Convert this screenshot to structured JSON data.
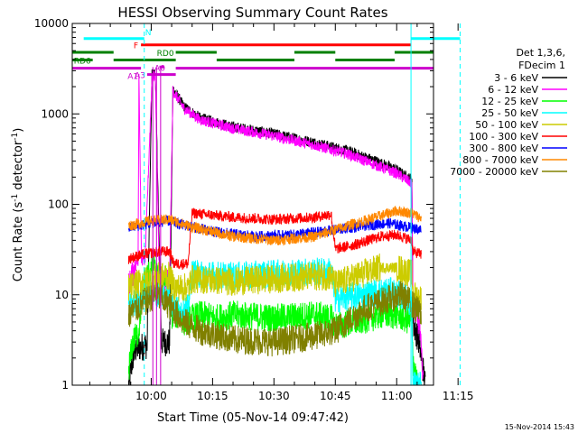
{
  "chart_data": {
    "type": "line",
    "title": "HESSI Observing Summary Count Rates",
    "xlabel": "Start Time (05-Nov-14 09:47:42)",
    "ylabel_main": "Count Rate (s",
    "ylabel_sup1": "-1",
    "ylabel_mid": " detector",
    "ylabel_sup2": "-1",
    "ylabel_end": ")",
    "y_scale": "log",
    "ylim": [
      1,
      10000
    ],
    "xlim_min": [
      -9.3,
      79
    ],
    "x_unit": "minutes after 09:50",
    "x_ticks": [
      {
        "label": "10:00",
        "value": 10
      },
      {
        "label": "10:15",
        "value": 25
      },
      {
        "label": "10:30",
        "value": 40
      },
      {
        "label": "10:45",
        "value": 55
      },
      {
        "label": "11:00",
        "value": 70
      },
      {
        "label": "11:15",
        "value": 85
      }
    ],
    "y_ticks": [
      {
        "label": "1",
        "value": 1
      },
      {
        "label": "10",
        "value": 10
      },
      {
        "label": "100",
        "value": 100
      },
      {
        "label": "1000",
        "value": 1000
      },
      {
        "label": "10000",
        "value": 10000
      }
    ],
    "legend_header": [
      "Det 1,3,6,",
      "FDecim 1"
    ],
    "series": [
      {
        "name": "3 - 6 keV",
        "color": "#000000",
        "points": [
          [
            4.5,
            1
          ],
          [
            5.5,
            2
          ],
          [
            6.2,
            2.5
          ],
          [
            9,
            2.8
          ],
          [
            10.2,
            2800
          ],
          [
            11,
            2800
          ],
          [
            12.5,
            3
          ],
          [
            14.5,
            3
          ],
          [
            15.3,
            1900
          ],
          [
            18,
            1200
          ],
          [
            22,
            900
          ],
          [
            30,
            720
          ],
          [
            40,
            600
          ],
          [
            50,
            480
          ],
          [
            58,
            390
          ],
          [
            65,
            300
          ],
          [
            70,
            240
          ],
          [
            72.5,
            200
          ],
          [
            73.7,
            190
          ],
          [
            74,
            5
          ],
          [
            75.5,
            3
          ],
          [
            77,
            1
          ]
        ]
      },
      {
        "name": "6 - 12 keV",
        "color": "#ff00ff",
        "points": [
          [
            4.5,
            14
          ],
          [
            6.8,
            24
          ],
          [
            7,
            3000
          ],
          [
            7.6,
            24
          ],
          [
            8.5,
            24
          ],
          [
            10.2,
            2600
          ],
          [
            11,
            2600
          ],
          [
            12,
            14
          ],
          [
            14.5,
            14
          ],
          [
            15.3,
            1800
          ],
          [
            18,
            1150
          ],
          [
            22,
            860
          ],
          [
            30,
            690
          ],
          [
            40,
            570
          ],
          [
            50,
            450
          ],
          [
            58,
            360
          ],
          [
            65,
            270
          ],
          [
            70,
            220
          ],
          [
            73.7,
            170
          ],
          [
            74,
            8
          ],
          [
            75.5,
            5
          ],
          [
            76.5,
            1
          ]
        ]
      },
      {
        "name": "12 - 25 keV",
        "color": "#00ff00",
        "points": [
          [
            4.5,
            1.5
          ],
          [
            5.5,
            3
          ],
          [
            7,
            4
          ],
          [
            8,
            14
          ],
          [
            10.5,
            20
          ],
          [
            12,
            14
          ],
          [
            13.5,
            15
          ],
          [
            15,
            6
          ],
          [
            17,
            6
          ],
          [
            18,
            5
          ],
          [
            22,
            6
          ],
          [
            26,
            5.5
          ],
          [
            30,
            6
          ],
          [
            40,
            5.5
          ],
          [
            50,
            6
          ],
          [
            54,
            5.5
          ],
          [
            55,
            4.5
          ],
          [
            60,
            5
          ],
          [
            66,
            6
          ],
          [
            70,
            6
          ],
          [
            73.7,
            5
          ],
          [
            74,
            2
          ],
          [
            75,
            1
          ]
        ]
      },
      {
        "name": "25 - 50 keV",
        "color": "#00ffff",
        "points": [
          [
            4.5,
            7
          ],
          [
            8,
            10
          ],
          [
            12,
            10
          ],
          [
            14.5,
            10
          ],
          [
            15.5,
            7
          ],
          [
            19,
            7
          ],
          [
            20,
            17
          ],
          [
            30,
            16
          ],
          [
            40,
            17
          ],
          [
            50,
            18
          ],
          [
            54,
            18
          ],
          [
            55,
            9
          ],
          [
            62,
            10
          ],
          [
            68,
            11
          ],
          [
            71,
            10
          ],
          [
            73.7,
            8
          ],
          [
            74,
            1
          ],
          [
            76,
            1
          ]
        ]
      },
      {
        "name": "50 - 100 keV",
        "color": "#cccc00",
        "points": [
          [
            4.5,
            12
          ],
          [
            8,
            14
          ],
          [
            12,
            16
          ],
          [
            14.5,
            16
          ],
          [
            15.5,
            12
          ],
          [
            19,
            12
          ],
          [
            20,
            15
          ],
          [
            30,
            14
          ],
          [
            40,
            15
          ],
          [
            50,
            16
          ],
          [
            54,
            16
          ],
          [
            55,
            13
          ],
          [
            60,
            16
          ],
          [
            66,
            20
          ],
          [
            70,
            20
          ],
          [
            73.7,
            17
          ],
          [
            74,
            10
          ],
          [
            76,
            9
          ]
        ]
      },
      {
        "name": "100 - 300 keV",
        "color": "#ff0000",
        "points": [
          [
            4.5,
            25
          ],
          [
            8,
            28
          ],
          [
            12,
            30
          ],
          [
            14.5,
            30
          ],
          [
            15.5,
            22
          ],
          [
            19,
            22
          ],
          [
            20,
            80
          ],
          [
            30,
            72
          ],
          [
            40,
            68
          ],
          [
            50,
            72
          ],
          [
            54,
            78
          ],
          [
            55,
            32
          ],
          [
            60,
            36
          ],
          [
            66,
            44
          ],
          [
            70,
            46
          ],
          [
            73.7,
            40
          ],
          [
            74,
            30
          ],
          [
            76,
            28
          ]
        ]
      },
      {
        "name": "300 - 800 keV",
        "color": "#0000ff",
        "points": [
          [
            4.5,
            55
          ],
          [
            10,
            62
          ],
          [
            14.5,
            66
          ],
          [
            16,
            62
          ],
          [
            25,
            50
          ],
          [
            35,
            44
          ],
          [
            45,
            46
          ],
          [
            55,
            52
          ],
          [
            62,
            58
          ],
          [
            68,
            62
          ],
          [
            73.7,
            55
          ],
          [
            76,
            52
          ]
        ]
      },
      {
        "name": "800 - 7000 keV",
        "color": "#ff8800",
        "points": [
          [
            4.5,
            58
          ],
          [
            10,
            66
          ],
          [
            14.5,
            68
          ],
          [
            20,
            56
          ],
          [
            30,
            44
          ],
          [
            40,
            40
          ],
          [
            50,
            44
          ],
          [
            58,
            58
          ],
          [
            65,
            72
          ],
          [
            70,
            85
          ],
          [
            73.7,
            80
          ],
          [
            76,
            70
          ]
        ]
      },
      {
        "name": "7000 - 20000 keV",
        "color": "#808000",
        "points": [
          [
            4.5,
            6
          ],
          [
            8,
            8
          ],
          [
            11,
            10
          ],
          [
            14,
            8
          ],
          [
            18,
            5
          ],
          [
            22,
            4
          ],
          [
            30,
            3.2
          ],
          [
            40,
            3
          ],
          [
            50,
            3.5
          ],
          [
            55,
            4
          ],
          [
            62,
            7
          ],
          [
            68,
            9
          ],
          [
            71,
            10
          ],
          [
            73.7,
            8
          ],
          [
            76,
            6
          ]
        ]
      }
    ],
    "flags": [
      {
        "label": "N",
        "color": "#00ffff",
        "y": 6800,
        "segments": [
          [
            -6.5,
            8.3
          ],
          [
            73.5,
            85.5
          ]
        ]
      },
      {
        "label": "F",
        "color": "#ff0000",
        "y": 5800,
        "segments": [
          [
            7.5,
            73.5
          ]
        ]
      },
      {
        "label": "RD0",
        "color": "#008000",
        "y": 4800,
        "segments": [
          [
            -9.3,
            0.8
          ],
          [
            16,
            26
          ],
          [
            45,
            55
          ],
          [
            69.5,
            79
          ]
        ]
      },
      {
        "label": "RD6",
        "color": "#008000",
        "y": 3950,
        "segments": [
          [
            -9.3,
            -4.3
          ],
          [
            0.8,
            16
          ],
          [
            26,
            45
          ],
          [
            55,
            69.5
          ]
        ]
      },
      {
        "label": "A0",
        "color": "#cc00cc",
        "y": 3300,
        "segments": [
          [
            12,
            13.2
          ]
        ]
      },
      {
        "label": "A1",
        "color": "#cc00cc",
        "y": 3200,
        "segments": [
          [
            -9.3,
            7.5
          ],
          [
            16,
            79
          ]
        ]
      },
      {
        "label": "A3",
        "color": "#cc00cc",
        "y": 2720,
        "segments": [
          [
            9,
            16
          ]
        ]
      }
    ],
    "vertical_lines": [
      {
        "color": "#00ffff",
        "x": -9.3,
        "dashed": false
      },
      {
        "color": "#00ffff",
        "x": 8.3,
        "dashed": true
      },
      {
        "color": "#00ffff",
        "x": 73.5,
        "dashed": false
      },
      {
        "color": "#00ffff",
        "x": 85.5,
        "dashed": true
      },
      {
        "color": "#cc00cc",
        "x": 10.4,
        "dashed": false
      },
      {
        "color": "#cc00cc",
        "x": 11.3,
        "dashed": false
      },
      {
        "color": "#cc00cc",
        "x": 12.3,
        "dashed": false
      }
    ],
    "footer_stamp": "15-Nov-2014 15:43"
  }
}
